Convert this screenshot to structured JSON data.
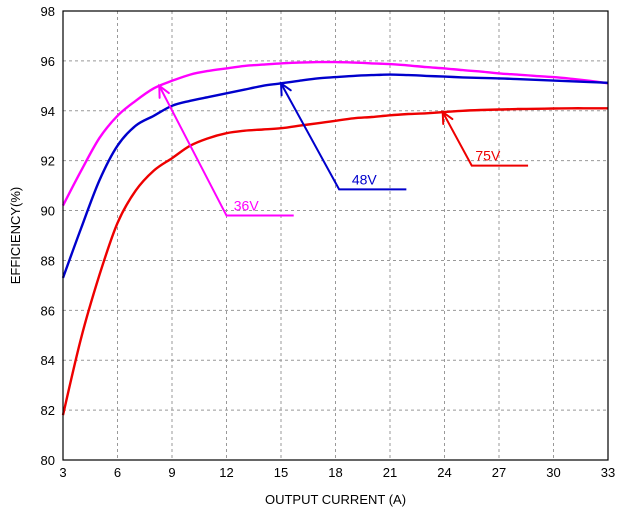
{
  "chart_data": {
    "type": "line",
    "title": "",
    "xlabel": "OUTPUT CURRENT (A)",
    "ylabel": "EFFICIENCY(%)",
    "xlim": [
      3,
      33
    ],
    "ylim": [
      80,
      98
    ],
    "xticks": [
      3,
      6,
      9,
      12,
      15,
      18,
      21,
      24,
      27,
      30,
      33
    ],
    "yticks": [
      80,
      82,
      84,
      86,
      88,
      90,
      92,
      94,
      96,
      98
    ],
    "grid": true,
    "series": [
      {
        "name": "36V",
        "color": "#ff00ff",
        "x": [
          3,
          4,
          5,
          6,
          7,
          8,
          9,
          10,
          11,
          12,
          13,
          14,
          15,
          16,
          17,
          18,
          19,
          20,
          21,
          22,
          23,
          24,
          25,
          26,
          27,
          28,
          29,
          30,
          31,
          32,
          33
        ],
        "y": [
          90.2,
          91.6,
          92.9,
          93.8,
          94.4,
          94.9,
          95.2,
          95.45,
          95.6,
          95.7,
          95.8,
          95.85,
          95.9,
          95.93,
          95.95,
          95.95,
          95.93,
          95.9,
          95.87,
          95.82,
          95.75,
          95.7,
          95.63,
          95.57,
          95.5,
          95.45,
          95.4,
          95.35,
          95.28,
          95.2,
          95.1
        ]
      },
      {
        "name": "48V",
        "color": "#0000cc",
        "x": [
          3,
          4,
          5,
          6,
          7,
          8,
          9,
          10,
          11,
          12,
          13,
          14,
          15,
          16,
          17,
          18,
          19,
          20,
          21,
          22,
          23,
          24,
          25,
          26,
          27,
          28,
          29,
          30,
          31,
          32,
          33
        ],
        "y": [
          87.3,
          89.3,
          91.2,
          92.6,
          93.4,
          93.8,
          94.2,
          94.4,
          94.55,
          94.7,
          94.85,
          95.0,
          95.1,
          95.2,
          95.3,
          95.35,
          95.4,
          95.43,
          95.45,
          95.43,
          95.4,
          95.37,
          95.34,
          95.32,
          95.3,
          95.27,
          95.24,
          95.21,
          95.18,
          95.15,
          95.12
        ]
      },
      {
        "name": "75V",
        "color": "#ee0000",
        "x": [
          3,
          4,
          5,
          6,
          7,
          8,
          9,
          10,
          11,
          12,
          13,
          14,
          15,
          16,
          17,
          18,
          19,
          20,
          21,
          22,
          23,
          24,
          25,
          26,
          27,
          28,
          29,
          30,
          31,
          32,
          33
        ],
        "y": [
          81.8,
          84.9,
          87.4,
          89.5,
          90.8,
          91.6,
          92.1,
          92.6,
          92.9,
          93.1,
          93.2,
          93.25,
          93.3,
          93.4,
          93.5,
          93.6,
          93.7,
          93.75,
          93.82,
          93.87,
          93.9,
          93.95,
          94.0,
          94.03,
          94.05,
          94.07,
          94.08,
          94.09,
          94.1,
          94.1,
          94.1
        ]
      }
    ],
    "annotations": [
      {
        "text": "36V",
        "color": "#ff00ff",
        "arrow_tip": [
          8.3,
          95.0
        ],
        "elbow": [
          12.0,
          89.8
        ],
        "line_end": [
          15.7,
          89.8
        ],
        "text_at": [
          12.4,
          90.0
        ]
      },
      {
        "text": "48V",
        "color": "#0000cc",
        "arrow_tip": [
          15.0,
          95.1
        ],
        "elbow": [
          18.2,
          90.85
        ],
        "line_end": [
          21.9,
          90.85
        ],
        "text_at": [
          18.9,
          91.05
        ]
      },
      {
        "text": "75V",
        "color": "#ee0000",
        "arrow_tip": [
          23.9,
          93.95
        ],
        "elbow": [
          25.5,
          91.8
        ],
        "line_end": [
          28.6,
          91.8
        ],
        "text_at": [
          25.7,
          92.0
        ]
      }
    ]
  }
}
